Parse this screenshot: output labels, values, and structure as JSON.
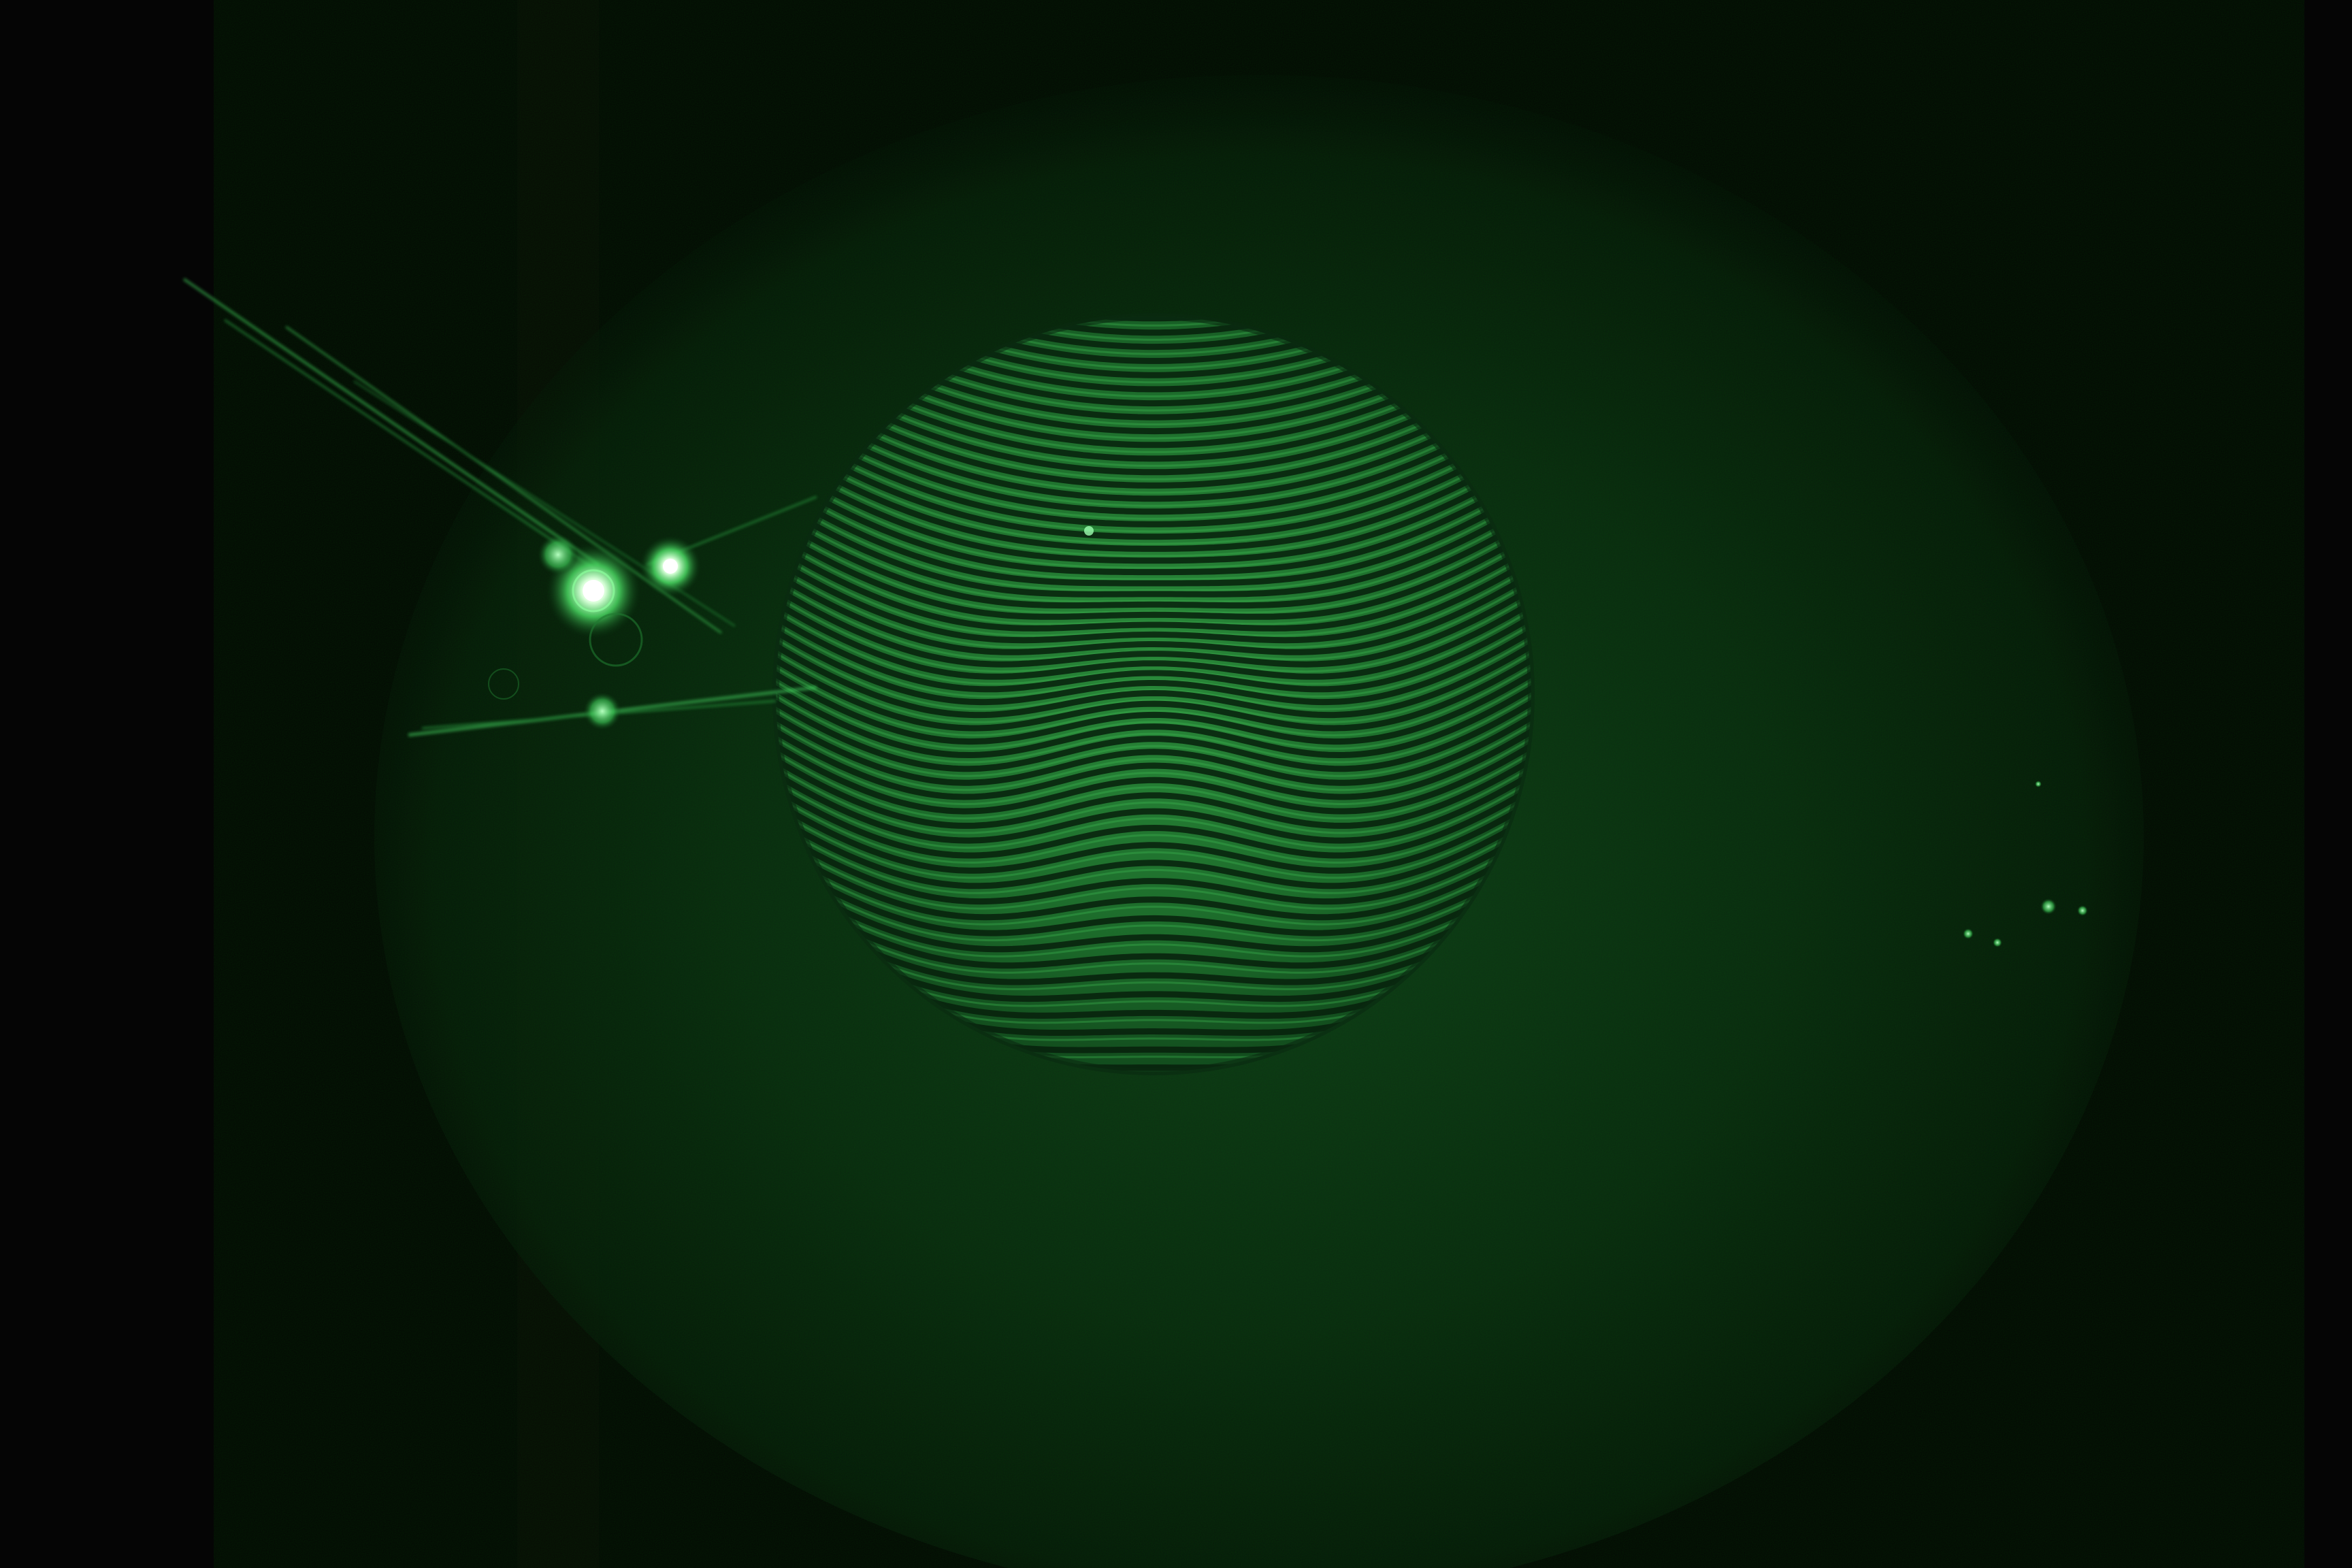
{
  "image": {
    "subject": "",
    "colors": {
      "background": "#050505",
      "screen_glow": "#0f3d1a",
      "disk_base": "#1e6a2c",
      "fringe_dark": "#07200c",
      "fringe_light": "#3fb954",
      "speckle_core": "#e8ffe8",
      "speckle_halo": "#5cff7a"
    }
  }
}
